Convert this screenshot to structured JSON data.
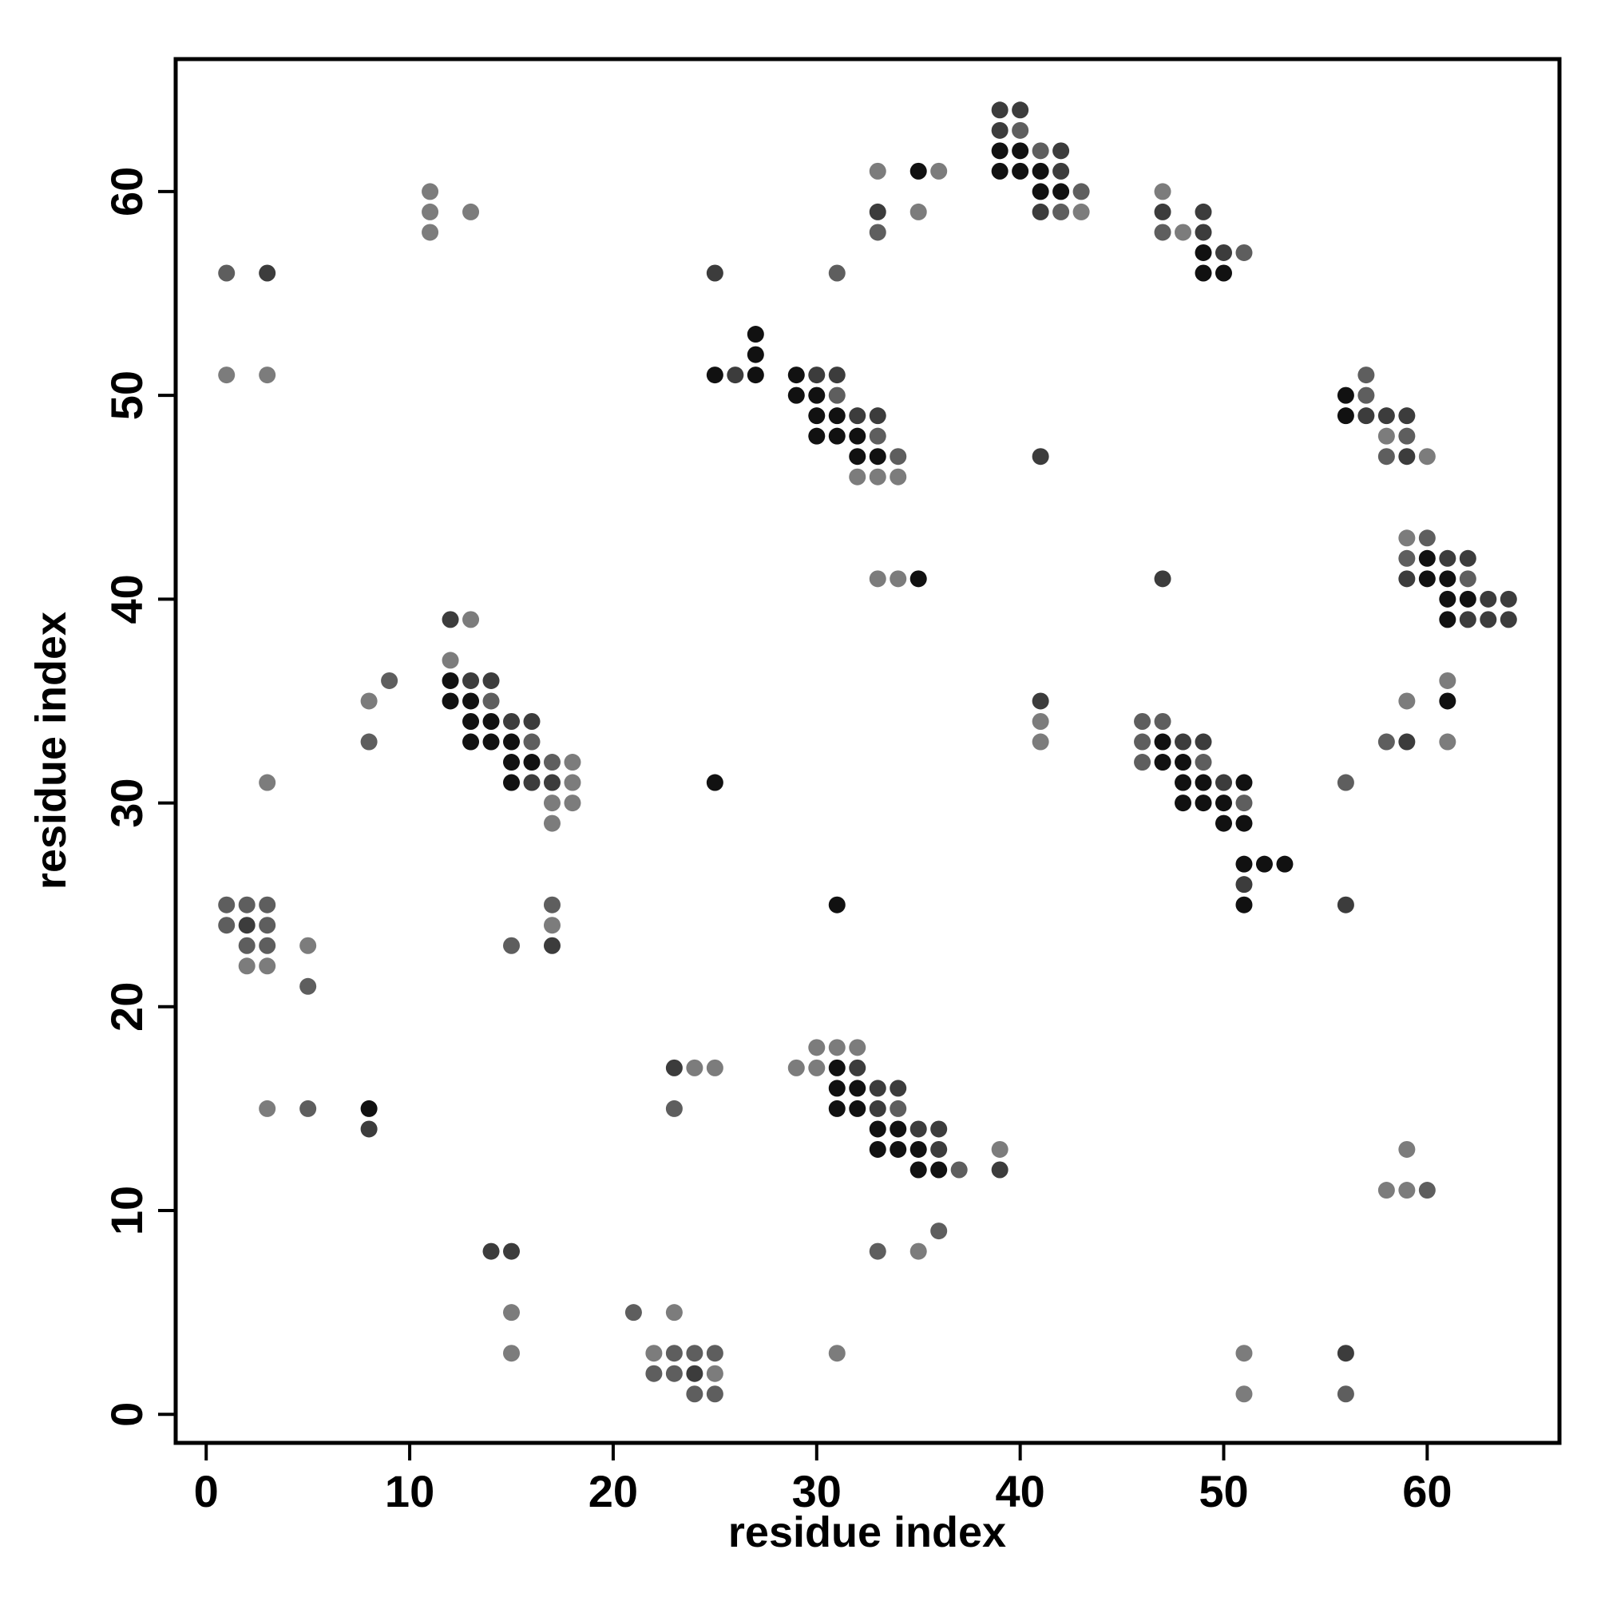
{
  "chart_data": {
    "type": "scatter",
    "xlabel": "residue index",
    "ylabel": "residue index",
    "xlim": [
      -1.5,
      66.5
    ],
    "ylim": [
      -1.4,
      66.5
    ],
    "xticks": [
      0,
      10,
      20,
      30,
      40,
      50,
      60
    ],
    "yticks": [
      0,
      10,
      20,
      30,
      40,
      50,
      60
    ],
    "grid": false,
    "series": [
      {
        "color": "#111111",
        "x": [
          39,
          40,
          35,
          39,
          40,
          41,
          41,
          42,
          49,
          49,
          50,
          27,
          27,
          25,
          27,
          29,
          29,
          30,
          56,
          30,
          31,
          56,
          30,
          31,
          32,
          32,
          33,
          60,
          35,
          60,
          61,
          61,
          62,
          61,
          12,
          12,
          13,
          61,
          13,
          14,
          13,
          14,
          15,
          47,
          15,
          16,
          47,
          48,
          15,
          25,
          48,
          49,
          51,
          48,
          49,
          50,
          50,
          51,
          51,
          52,
          53,
          31,
          51,
          31,
          31,
          32,
          8,
          31,
          32,
          33,
          34,
          33,
          34,
          35,
          35,
          36
        ],
        "values": [
          62,
          62,
          61,
          61,
          61,
          61,
          60,
          60,
          57,
          56,
          56,
          53,
          52,
          51,
          51,
          51,
          50,
          50,
          50,
          49,
          49,
          49,
          48,
          48,
          48,
          47,
          47,
          42,
          41,
          41,
          41,
          40,
          40,
          39,
          36,
          35,
          35,
          35,
          34,
          34,
          33,
          33,
          33,
          33,
          32,
          32,
          32,
          32,
          31,
          31,
          31,
          31,
          31,
          30,
          30,
          30,
          29,
          29,
          27,
          27,
          27,
          25,
          25,
          17,
          16,
          16,
          15,
          15,
          15,
          14,
          14,
          13,
          13,
          13,
          12,
          12
        ]
      },
      {
        "color": "#3c3c3c",
        "x": [
          39,
          40,
          39,
          42,
          42,
          33,
          41,
          47,
          49,
          49,
          50,
          3,
          25,
          26,
          30,
          31,
          32,
          33,
          57,
          58,
          59,
          41,
          59,
          61,
          62,
          47,
          59,
          63,
          64,
          12,
          62,
          63,
          64,
          13,
          14,
          41,
          15,
          16,
          48,
          49,
          59,
          16,
          17,
          50,
          51,
          56,
          2,
          17,
          23,
          32,
          33,
          34,
          33,
          8,
          35,
          36,
          36,
          39,
          14,
          15,
          56,
          24
        ],
        "values": [
          64,
          64,
          63,
          62,
          61,
          59,
          59,
          59,
          59,
          58,
          57,
          56,
          56,
          51,
          51,
          51,
          49,
          49,
          49,
          49,
          49,
          47,
          47,
          42,
          42,
          41,
          41,
          40,
          40,
          39,
          39,
          39,
          39,
          36,
          36,
          35,
          34,
          34,
          33,
          33,
          33,
          31,
          31,
          31,
          26,
          25,
          24,
          23,
          17,
          17,
          16,
          16,
          15,
          14,
          14,
          14,
          13,
          12,
          8,
          8,
          3,
          2
        ]
      },
      {
        "color": "#5e5e5e",
        "x": [
          40,
          41,
          42,
          43,
          33,
          47,
          51,
          1,
          31,
          57,
          31,
          57,
          33,
          59,
          34,
          58,
          60,
          59,
          62,
          9,
          14,
          46,
          47,
          8,
          16,
          46,
          58,
          17,
          46,
          49,
          56,
          51,
          1,
          2,
          3,
          17,
          1,
          3,
          2,
          3,
          15,
          5,
          5,
          23,
          34,
          37,
          60,
          36,
          33,
          21,
          23,
          24,
          25,
          22,
          23,
          24,
          25,
          56
        ],
        "values": [
          63,
          62,
          59,
          60,
          58,
          58,
          57,
          56,
          56,
          51,
          50,
          50,
          48,
          48,
          47,
          47,
          43,
          42,
          41,
          36,
          35,
          34,
          34,
          33,
          33,
          33,
          33,
          32,
          32,
          32,
          31,
          30,
          25,
          25,
          25,
          25,
          24,
          24,
          23,
          23,
          23,
          21,
          15,
          15,
          15,
          12,
          11,
          9,
          8,
          5,
          3,
          3,
          3,
          2,
          2,
          1,
          1,
          1
        ]
      },
      {
        "color": "#7c7c7c",
        "x": [
          33,
          36,
          11,
          47,
          11,
          13,
          35,
          43,
          48,
          11,
          1,
          3,
          32,
          33,
          34,
          58,
          60,
          59,
          33,
          34,
          13,
          12,
          61,
          8,
          59,
          41,
          41,
          61,
          18,
          3,
          18,
          17,
          18,
          17,
          17,
          5,
          2,
          3,
          30,
          31,
          32,
          24,
          25,
          29,
          30,
          3,
          39,
          59,
          58,
          59,
          35,
          15,
          23,
          15,
          22,
          31,
          51,
          25,
          51
        ],
        "values": [
          61,
          61,
          60,
          60,
          59,
          59,
          59,
          59,
          58,
          58,
          51,
          51,
          46,
          46,
          46,
          48,
          47,
          43,
          41,
          41,
          39,
          37,
          36,
          35,
          35,
          34,
          33,
          33,
          32,
          31,
          31,
          30,
          30,
          29,
          24,
          23,
          22,
          22,
          18,
          18,
          18,
          17,
          17,
          17,
          17,
          15,
          13,
          13,
          11,
          11,
          8,
          5,
          5,
          3,
          3,
          3,
          3,
          2,
          1
        ]
      }
    ]
  }
}
